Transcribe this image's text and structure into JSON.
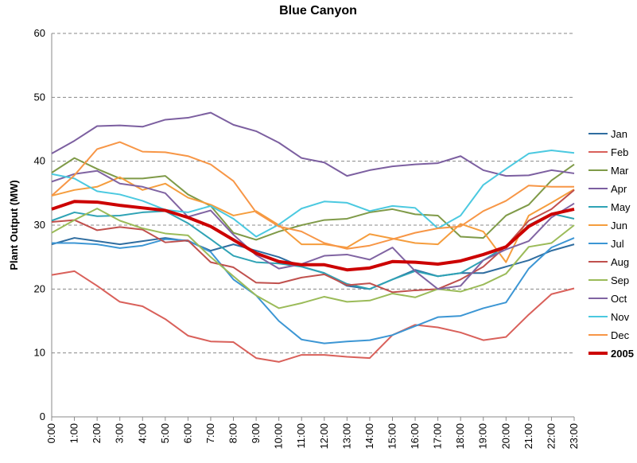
{
  "chart_data": {
    "type": "line",
    "title": "Blue Canyon",
    "y_label": "Plant Output (MW)",
    "categories": [
      "0:00",
      "1:00",
      "2:00",
      "3:00",
      "4:00",
      "5:00",
      "6:00",
      "7:00",
      "8:00",
      "9:00",
      "10:00",
      "11:00",
      "12:00",
      "13:00",
      "14:00",
      "15:00",
      "16:00",
      "17:00",
      "18:00",
      "19:00",
      "20:00",
      "21:00",
      "22:00",
      "23:00"
    ],
    "ylim": [
      0,
      60
    ],
    "yticks": [
      0,
      10,
      20,
      30,
      40,
      50,
      60
    ],
    "grid": true,
    "legend": "right",
    "series": [
      {
        "name": "Jan",
        "color": "#2f6da0",
        "width": 2,
        "values": [
          27,
          28,
          27.5,
          27,
          27.5,
          28,
          27.5,
          26,
          27,
          26,
          25,
          23.5,
          22.5,
          20.5,
          20,
          21.5,
          23,
          22,
          22.5,
          22.5,
          23.5,
          24.5,
          26,
          27
        ]
      },
      {
        "name": "Feb",
        "color": "#d9605a",
        "width": 2,
        "values": [
          22.2,
          22.8,
          20.5,
          18,
          17.3,
          15.3,
          12.7,
          11.8,
          11.7,
          9.2,
          8.6,
          9.7,
          9.7,
          9.4,
          9.2,
          12.8,
          14.4,
          14,
          13.2,
          12,
          12.5,
          16,
          19.2,
          20.1
        ]
      },
      {
        "name": "Mar",
        "color": "#7f9a48",
        "width": 2,
        "values": [
          38.2,
          40.5,
          38.8,
          37.3,
          37.3,
          37.7,
          34.8,
          33,
          28.8,
          27.7,
          29,
          30,
          30.8,
          31,
          32,
          32.5,
          31.7,
          31.5,
          28.2,
          28,
          31.5,
          33.2,
          37,
          39.5
        ]
      },
      {
        "name": "Apr",
        "color": "#7c5fa0",
        "width": 2,
        "values": [
          41.2,
          43.2,
          45.5,
          45.6,
          45.4,
          46.5,
          46.8,
          47.6,
          45.7,
          44.7,
          42.9,
          40.5,
          39.8,
          37.7,
          38.6,
          39.2,
          39.5,
          39.7,
          40.8,
          38.6,
          37.7,
          37.8,
          38.6,
          38.1
        ]
      },
      {
        "name": "May",
        "color": "#2fa3b5",
        "width": 2,
        "values": [
          30.7,
          32,
          31.4,
          31.5,
          32,
          32.2,
          30.3,
          27.8,
          25.2,
          24.2,
          24,
          23.5,
          22.5,
          20.8,
          20,
          21.5,
          22.8,
          22,
          22.5,
          24.5,
          26.7,
          30,
          31.8,
          31
        ]
      },
      {
        "name": "Jun",
        "color": "#f59d3d",
        "width": 2,
        "values": [
          34.6,
          35.5,
          36,
          37.5,
          35.5,
          36.5,
          34.3,
          33.2,
          31.5,
          32.2,
          30,
          27,
          27,
          26.5,
          28.6,
          27.9,
          27.2,
          27,
          30.2,
          29,
          24.2,
          31.5,
          33.5,
          35.6
        ]
      },
      {
        "name": "Jul",
        "color": "#3c96d4",
        "width": 2,
        "values": [
          27.2,
          27.2,
          27,
          26.4,
          26.8,
          27.8,
          27.6,
          25.8,
          21.5,
          19,
          15,
          12.1,
          11.5,
          11.8,
          12,
          12.8,
          14.2,
          15.6,
          15.8,
          17,
          17.9,
          23.2,
          26.5,
          28
        ]
      },
      {
        "name": "Aug",
        "color": "#c0504d",
        "width": 2,
        "values": [
          30.5,
          30.8,
          29.2,
          29.7,
          29.3,
          27.3,
          27.6,
          24.2,
          23.4,
          21,
          20.9,
          21.8,
          22.3,
          20.6,
          20.9,
          19.5,
          19.8,
          20,
          21.5,
          23.5,
          26.7,
          30.7,
          32.5,
          35.5
        ]
      },
      {
        "name": "Sep",
        "color": "#9bbb59",
        "width": 2,
        "values": [
          28.8,
          30.8,
          32.6,
          30.7,
          29.5,
          28.7,
          28.4,
          25,
          22,
          19,
          17,
          17.8,
          18.8,
          18,
          18.2,
          19.3,
          18.7,
          20,
          19.6,
          20.7,
          22.4,
          26.6,
          27.2,
          30
        ]
      },
      {
        "name": "Oct",
        "color": "#8064a2",
        "width": 2,
        "values": [
          36.8,
          38,
          38.5,
          36.5,
          36,
          35,
          31.3,
          32.3,
          28.5,
          25.3,
          23.2,
          23.9,
          25.2,
          25.4,
          24.6,
          26.5,
          22.8,
          20,
          20.5,
          24.5,
          26.2,
          27.5,
          31.2,
          33.4
        ]
      },
      {
        "name": "Nov",
        "color": "#4bc9e0",
        "width": 2,
        "values": [
          38,
          37.3,
          35.3,
          34.8,
          33.8,
          32.4,
          32,
          33,
          31,
          28.2,
          30.1,
          32.6,
          33.7,
          33.5,
          32.2,
          33,
          32.7,
          29.5,
          31.5,
          36.3,
          38.8,
          41.2,
          41.7,
          41.3
        ]
      },
      {
        "name": "Dec",
        "color": "#f79646",
        "width": 2,
        "values": [
          34.6,
          37.8,
          41.9,
          43,
          41.5,
          41.4,
          40.8,
          39.5,
          36.9,
          32,
          29.8,
          29,
          27.2,
          26.3,
          26.8,
          27.8,
          28.8,
          29.5,
          29.8,
          32.2,
          33.8,
          36.2,
          36,
          36
        ]
      },
      {
        "name": "2005",
        "color": "#cc0000",
        "width": 4,
        "values": [
          32.5,
          33.7,
          33.6,
          33.1,
          32.7,
          32.3,
          31.2,
          29.8,
          27.7,
          25.6,
          24.3,
          23.8,
          23.8,
          23,
          23.3,
          24.3,
          24.2,
          23.9,
          24.4,
          25.4,
          26.6,
          29.8,
          31.7,
          32.5
        ]
      }
    ]
  }
}
